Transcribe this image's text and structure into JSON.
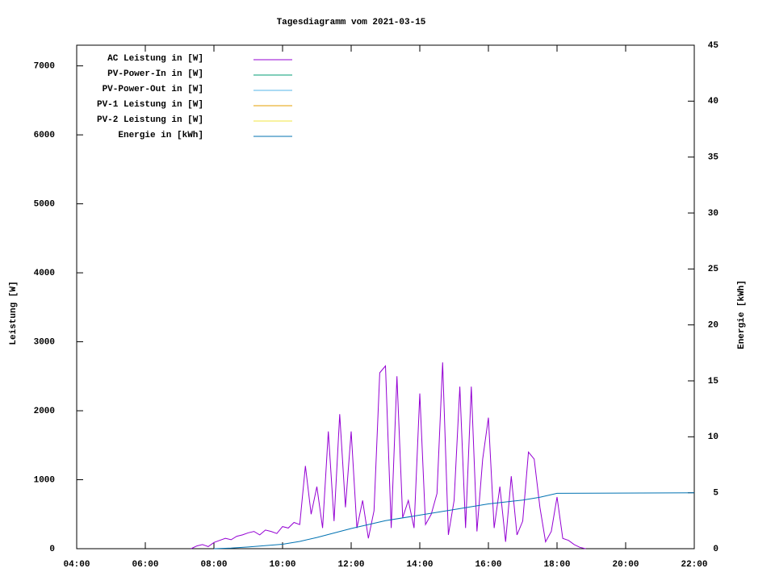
{
  "chart_data": {
    "type": "line",
    "title": "Tagesdiagramm vom 2021-03-15",
    "ylabel": "Leistung [W]",
    "y2label": "Energie [kWh]",
    "xlim": [
      "04:00",
      "22:00"
    ],
    "xticks": [
      "04:00",
      "06:00",
      "08:00",
      "10:00",
      "12:00",
      "14:00",
      "16:00",
      "18:00",
      "20:00",
      "22:00"
    ],
    "ylim": [
      0,
      7300
    ],
    "yticks": [
      0,
      1000,
      2000,
      3000,
      4000,
      5000,
      6000,
      7000
    ],
    "y2lim": [
      0,
      45
    ],
    "y2ticks": [
      0,
      5,
      10,
      15,
      20,
      25,
      30,
      35,
      40,
      45
    ],
    "legend": "upper left",
    "grid": false,
    "series": [
      {
        "name": "AC Leistung in [W]",
        "color": "#9400d3",
        "x": [
          "07:20",
          "07:30",
          "07:40",
          "07:50",
          "08:00",
          "08:10",
          "08:20",
          "08:30",
          "08:40",
          "08:50",
          "09:00",
          "09:10",
          "09:20",
          "09:30",
          "09:40",
          "09:50",
          "10:00",
          "10:10",
          "10:20",
          "10:30",
          "10:40",
          "10:50",
          "11:00",
          "11:10",
          "11:20",
          "11:30",
          "11:40",
          "11:50",
          "12:00",
          "12:10",
          "12:20",
          "12:30",
          "12:40",
          "12:50",
          "13:00",
          "13:10",
          "13:20",
          "13:30",
          "13:40",
          "13:50",
          "14:00",
          "14:10",
          "14:20",
          "14:30",
          "14:40",
          "14:50",
          "15:00",
          "15:10",
          "15:20",
          "15:30",
          "15:40",
          "15:50",
          "16:00",
          "16:10",
          "16:20",
          "16:30",
          "16:40",
          "16:50",
          "17:00",
          "17:10",
          "17:20",
          "17:30",
          "17:40",
          "17:50",
          "18:00",
          "18:10",
          "18:20",
          "18:30",
          "18:40",
          "18:50"
        ],
        "values": [
          0,
          40,
          60,
          30,
          90,
          120,
          150,
          130,
          180,
          200,
          230,
          250,
          200,
          270,
          250,
          220,
          320,
          300,
          380,
          350,
          1200,
          500,
          900,
          300,
          1700,
          400,
          1950,
          600,
          1700,
          300,
          700,
          150,
          550,
          2550,
          2650,
          300,
          2500,
          450,
          700,
          300,
          2250,
          350,
          500,
          800,
          2700,
          200,
          700,
          2350,
          300,
          2350,
          250,
          1300,
          1900,
          300,
          900,
          100,
          1050,
          200,
          400,
          1400,
          1300,
          600,
          100,
          250,
          750,
          150,
          120,
          60,
          20,
          0
        ]
      },
      {
        "name": "PV-Power-In in [W]",
        "color": "#009e73",
        "x": [],
        "values": []
      },
      {
        "name": "PV-Power-Out in [W]",
        "color": "#56b4e9",
        "x": [],
        "values": []
      },
      {
        "name": "PV-1 Leistung in [W]",
        "color": "#e69f00",
        "x": [],
        "values": []
      },
      {
        "name": "PV-2 Leistung in [W]",
        "color": "#f0e442",
        "x": [],
        "values": []
      },
      {
        "name": "Energie in [kWh]",
        "color": "#0072b2",
        "axis": "y2",
        "x": [
          "08:00",
          "08:30",
          "09:00",
          "10:00",
          "10:30",
          "11:00",
          "12:00",
          "13:00",
          "14:00",
          "15:00",
          "16:00",
          "17:00",
          "17:30",
          "18:00",
          "22:00"
        ],
        "values": [
          0,
          0.05,
          0.15,
          0.4,
          0.65,
          1.0,
          1.8,
          2.5,
          3.0,
          3.5,
          4.0,
          4.35,
          4.6,
          4.95,
          5.0
        ]
      }
    ]
  }
}
